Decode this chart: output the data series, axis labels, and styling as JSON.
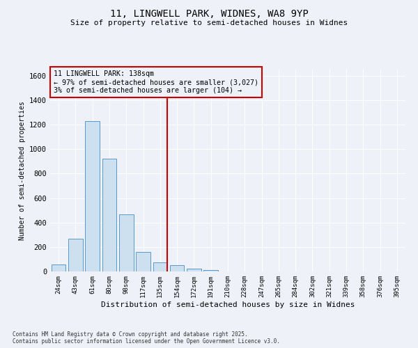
{
  "title_line1": "11, LINGWELL PARK, WIDNES, WA8 9YP",
  "title_line2": "Size of property relative to semi-detached houses in Widnes",
  "xlabel": "Distribution of semi-detached houses by size in Widnes",
  "ylabel": "Number of semi-detached properties",
  "categories": [
    "24sqm",
    "43sqm",
    "61sqm",
    "80sqm",
    "98sqm",
    "117sqm",
    "135sqm",
    "154sqm",
    "172sqm",
    "191sqm",
    "210sqm",
    "228sqm",
    "247sqm",
    "265sqm",
    "284sqm",
    "302sqm",
    "321sqm",
    "339sqm",
    "358sqm",
    "376sqm",
    "395sqm"
  ],
  "values": [
    55,
    265,
    1230,
    920,
    465,
    160,
    75,
    50,
    25,
    10,
    0,
    0,
    0,
    0,
    0,
    0,
    0,
    0,
    0,
    0,
    0
  ],
  "bar_color": "#cce0f0",
  "bar_edge_color": "#5599cc",
  "vline_x_index": 6,
  "vline_color": "#cc0000",
  "annotation_text": "11 LINGWELL PARK: 138sqm\n← 97% of semi-detached houses are smaller (3,027)\n3% of semi-detached houses are larger (104) →",
  "annotation_box_color": "#cc0000",
  "ylim": [
    0,
    1650
  ],
  "yticks": [
    0,
    200,
    400,
    600,
    800,
    1000,
    1200,
    1400,
    1600
  ],
  "background_color": "#eef2f8",
  "grid_color": "#ffffff",
  "footer_line1": "Contains HM Land Registry data © Crown copyright and database right 2025.",
  "footer_line2": "Contains public sector information licensed under the Open Government Licence v3.0."
}
